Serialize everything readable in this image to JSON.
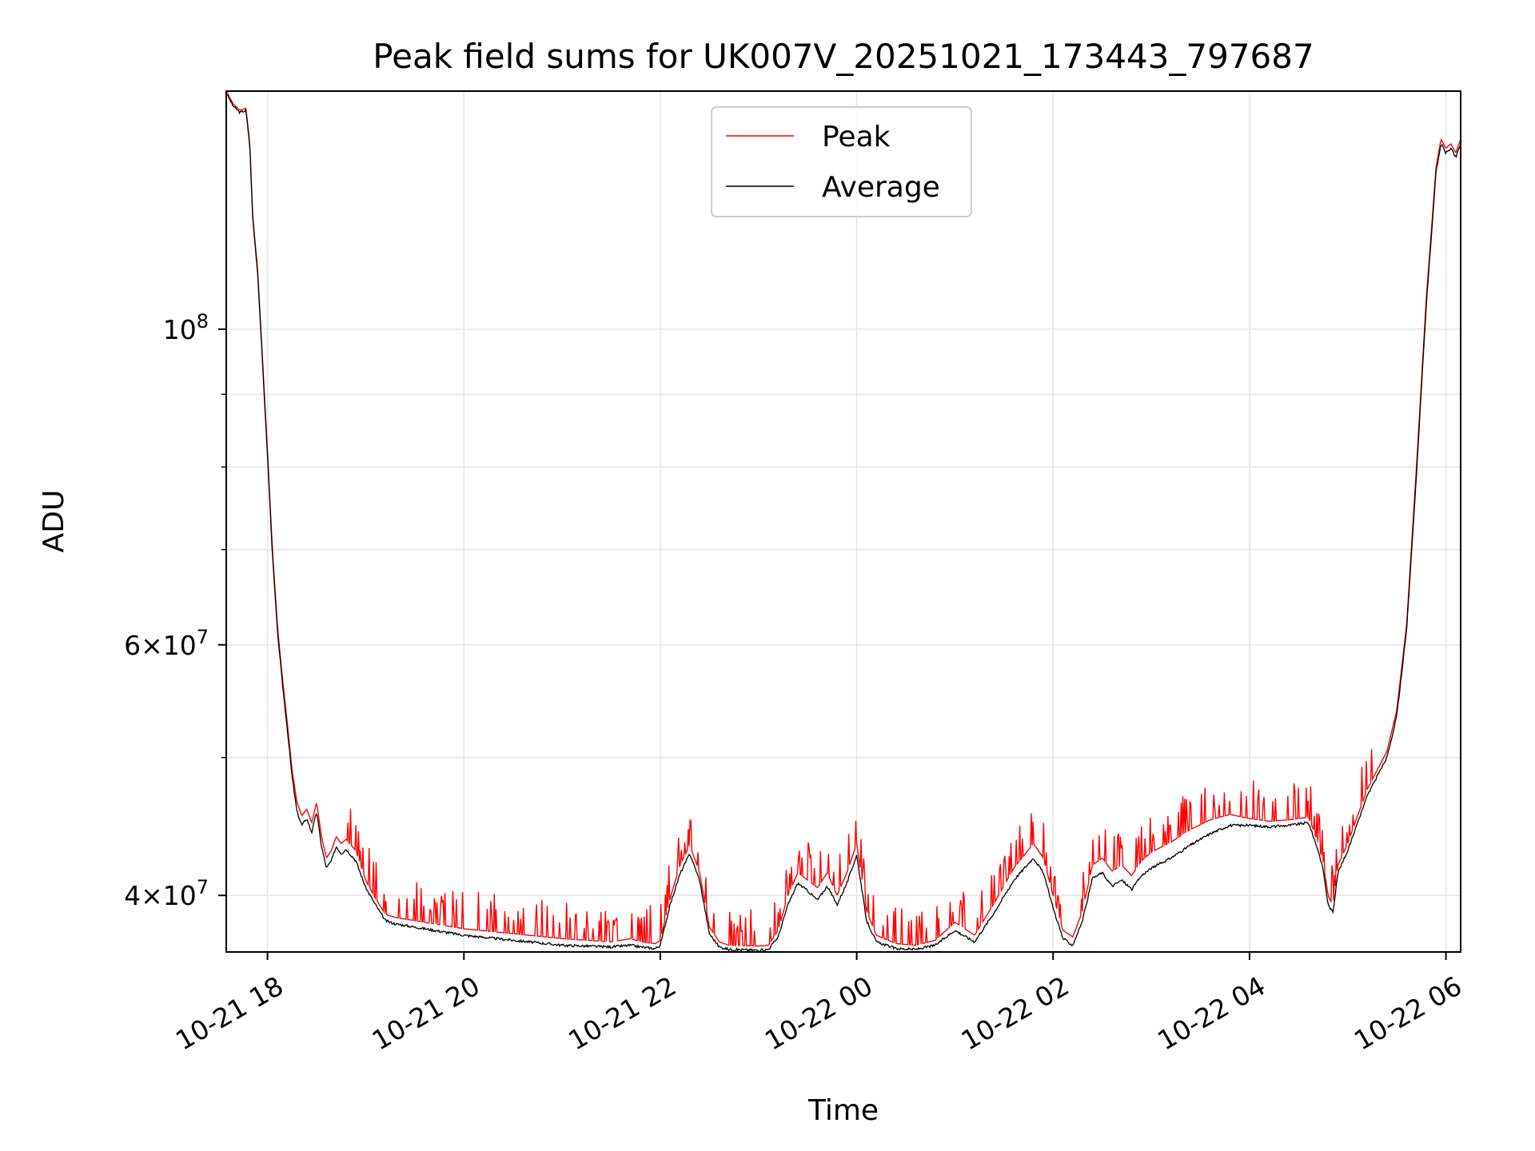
{
  "chart_data": {
    "type": "line",
    "title": "Peak field sums for UK007V_20251021_173443_797687",
    "xlabel": "Time",
    "ylabel": "ADU",
    "yscale": "log",
    "x_unit": "hours since 2025-10-21 00:00",
    "xlim": [
      17.58,
      30.15
    ],
    "ylim": [
      36500000,
      147000000
    ],
    "x_ticks": [
      {
        "value": 18,
        "label": "10-21 18"
      },
      {
        "value": 20,
        "label": "10-21 20"
      },
      {
        "value": 22,
        "label": "10-21 22"
      },
      {
        "value": 24,
        "label": "10-22 00"
      },
      {
        "value": 26,
        "label": "10-22 02"
      },
      {
        "value": 28,
        "label": "10-22 04"
      },
      {
        "value": 30,
        "label": "10-22 06"
      }
    ],
    "y_major_ticks": [
      {
        "value": 40000000,
        "base": "4",
        "exp": "7",
        "mult": true
      },
      {
        "value": 60000000,
        "base": "6",
        "exp": "7",
        "mult": true
      },
      {
        "value": 100000000,
        "base": "10",
        "exp": "8",
        "mult": false
      }
    ],
    "y_minor_ticks": [
      50000000,
      70000000,
      80000000,
      90000000
    ],
    "grid": true,
    "legend": {
      "position": "top-center",
      "entries": [
        "Peak",
        "Average"
      ]
    },
    "series": [
      {
        "name": "Peak",
        "color": "#ff0000",
        "x": [
          17.58,
          17.65,
          17.72,
          17.78,
          17.82,
          17.85,
          17.9,
          17.95,
          18.0,
          18.05,
          18.1,
          18.15,
          18.2,
          18.25,
          18.3,
          18.35,
          18.4,
          18.45,
          18.5,
          18.55,
          18.6,
          18.65,
          18.7,
          18.75,
          18.8,
          18.9,
          19.0,
          19.1,
          19.2,
          19.3,
          19.4,
          19.5,
          19.6,
          19.8,
          20.0,
          20.5,
          21.0,
          21.5,
          21.7,
          21.8,
          21.95,
          22.0,
          22.1,
          22.2,
          22.3,
          22.4,
          22.5,
          22.6,
          22.7,
          23.0,
          23.1,
          23.2,
          23.3,
          23.4,
          23.5,
          23.6,
          23.7,
          23.8,
          23.9,
          24.0,
          24.1,
          24.2,
          24.4,
          24.6,
          24.8,
          25.0,
          25.2,
          25.4,
          25.6,
          25.8,
          25.9,
          26.0,
          26.1,
          26.2,
          26.3,
          26.4,
          26.5,
          26.6,
          26.7,
          26.8,
          26.9,
          27.0,
          27.2,
          27.4,
          27.6,
          27.8,
          28.0,
          28.2,
          28.4,
          28.6,
          28.65,
          28.7,
          28.75,
          28.8,
          28.85,
          28.9,
          29.0,
          29.1,
          29.2,
          29.3,
          29.4,
          29.5,
          29.6,
          29.7,
          29.8,
          29.9,
          29.95,
          30.0,
          30.05,
          30.1,
          30.15
        ],
        "y": [
          147000000,
          144000000,
          142500000,
          143000000,
          135000000,
          120000000,
          110000000,
          95000000,
          82000000,
          70000000,
          62000000,
          57000000,
          53000000,
          49000000,
          46500000,
          45500000,
          46000000,
          45000000,
          46500000,
          44000000,
          42500000,
          43000000,
          44000000,
          43500000,
          43800000,
          43000000,
          41000000,
          39800000,
          38800000,
          38600000,
          38500000,
          38400000,
          38300000,
          38100000,
          37900000,
          37600000,
          37300000,
          37100000,
          37300000,
          37100000,
          37000000,
          37200000,
          39800000,
          42000000,
          43400000,
          41500000,
          38000000,
          37100000,
          36900000,
          36850000,
          36900000,
          37800000,
          40000000,
          41500000,
          41000000,
          40500000,
          41500000,
          40000000,
          41500000,
          43500000,
          39000000,
          37500000,
          37000000,
          36900000,
          37200000,
          38300000,
          37500000,
          39500000,
          41800000,
          43500000,
          42500000,
          40000000,
          37800000,
          37400000,
          39000000,
          42000000,
          42500000,
          41600000,
          42000000,
          41300000,
          42300000,
          42900000,
          43600000,
          44500000,
          45200000,
          45600000,
          45300000,
          45100000,
          45200000,
          45400000,
          44500000,
          43500000,
          42200000,
          40000000,
          39300000,
          42000000,
          43500000,
          45500000,
          47500000,
          49000000,
          50500000,
          54000000,
          62000000,
          80000000,
          105000000,
          130000000,
          136000000,
          134000000,
          135000000,
          133000000,
          136000000
        ]
      },
      {
        "name": "Average",
        "color": "#000000",
        "x": [
          17.58,
          17.65,
          17.72,
          17.78,
          17.82,
          17.85,
          17.9,
          17.95,
          18.0,
          18.05,
          18.1,
          18.15,
          18.2,
          18.25,
          18.3,
          18.35,
          18.4,
          18.45,
          18.5,
          18.55,
          18.6,
          18.65,
          18.7,
          18.75,
          18.8,
          18.9,
          19.0,
          19.1,
          19.2,
          19.3,
          19.4,
          19.5,
          19.6,
          19.8,
          20.0,
          20.5,
          21.0,
          21.5,
          21.7,
          21.8,
          21.95,
          22.0,
          22.1,
          22.2,
          22.3,
          22.4,
          22.5,
          22.6,
          22.7,
          23.0,
          23.1,
          23.2,
          23.3,
          23.4,
          23.5,
          23.6,
          23.7,
          23.8,
          23.9,
          24.0,
          24.1,
          24.2,
          24.4,
          24.6,
          24.8,
          25.0,
          25.2,
          25.4,
          25.6,
          25.8,
          25.9,
          26.0,
          26.1,
          26.2,
          26.3,
          26.4,
          26.5,
          26.6,
          26.7,
          26.8,
          26.9,
          27.0,
          27.2,
          27.4,
          27.6,
          27.8,
          28.0,
          28.2,
          28.4,
          28.6,
          28.65,
          28.7,
          28.75,
          28.8,
          28.85,
          28.9,
          29.0,
          29.1,
          29.2,
          29.3,
          29.4,
          29.5,
          29.6,
          29.7,
          29.8,
          29.9,
          29.95,
          30.0,
          30.05,
          30.1,
          30.15
        ],
        "y": [
          146500000,
          143500000,
          142000000,
          142500000,
          134500000,
          119500000,
          109500000,
          94500000,
          81500000,
          69500000,
          61500000,
          56500000,
          52500000,
          48500000,
          45800000,
          44800000,
          45300000,
          44300000,
          45800000,
          43300000,
          41800000,
          42300000,
          43300000,
          42800000,
          43100000,
          42300000,
          40500000,
          39400000,
          38400000,
          38200000,
          38100000,
          38000000,
          37900000,
          37700000,
          37500000,
          37200000,
          36900000,
          36800000,
          36900000,
          36800000,
          36700000,
          36900000,
          39400000,
          41400000,
          42800000,
          41000000,
          37600000,
          36800000,
          36650000,
          36600000,
          36650000,
          37400000,
          39400000,
          40800000,
          40300000,
          39700000,
          40600000,
          39400000,
          40800000,
          42700000,
          38400000,
          37100000,
          36700000,
          36650000,
          36900000,
          37800000,
          37100000,
          38900000,
          41000000,
          42500000,
          41500000,
          39200000,
          37300000,
          36900000,
          38400000,
          41100000,
          41500000,
          40600000,
          41000000,
          40400000,
          41300000,
          41800000,
          42500000,
          43400000,
          44200000,
          44800000,
          44800000,
          44700000,
          44800000,
          45000000,
          44000000,
          43000000,
          41700000,
          39400000,
          38900000,
          41500000,
          43000000,
          45000000,
          47000000,
          48500000,
          50000000,
          53500000,
          61500000,
          79000000,
          104000000,
          129000000,
          135000000,
          133000000,
          134000000,
          132000000,
          135000000
        ]
      }
    ]
  }
}
